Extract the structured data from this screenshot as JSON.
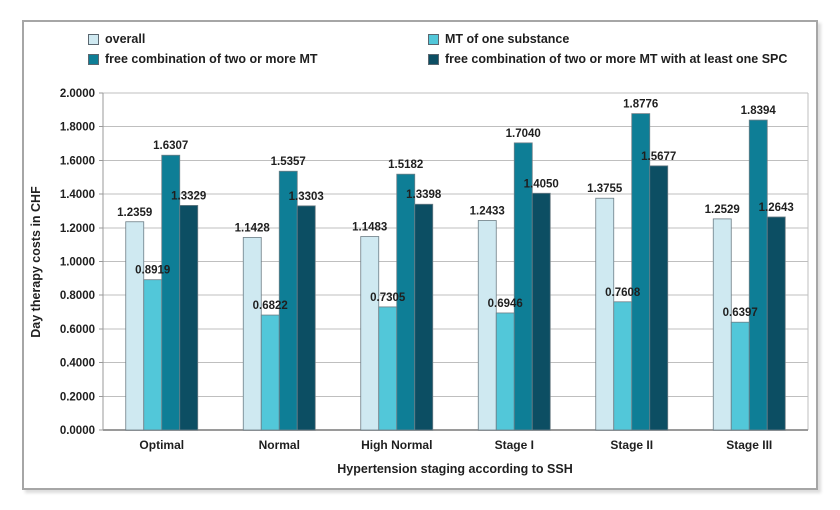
{
  "chart_data": {
    "type": "bar",
    "title": "",
    "xlabel": "Hypertension staging according to SSH",
    "ylabel": "Day therapy costs in CHF",
    "categories": [
      "Optimal",
      "Normal",
      "High Normal",
      "Stage I",
      "Stage II",
      "Stage III"
    ],
    "series": [
      {
        "name": "overall",
        "color": "#cfe9f1",
        "values": [
          1.2359,
          1.1428,
          1.1483,
          1.2433,
          1.3755,
          1.2529
        ]
      },
      {
        "name": "MT of one substance",
        "color": "#52c7d9",
        "values": [
          0.8919,
          0.6822,
          0.7305,
          0.6946,
          0.7608,
          0.6397
        ]
      },
      {
        "name": "free combination of two or more MT",
        "color": "#0e7e96",
        "values": [
          1.6307,
          1.5357,
          1.5182,
          1.704,
          1.8776,
          1.8394
        ]
      },
      {
        "name": "free combination of two or more MT with at least one SPC",
        "color": "#0c4e63",
        "values": [
          1.3329,
          1.3303,
          1.3398,
          1.405,
          1.5677,
          1.2643
        ]
      }
    ],
    "ylim": [
      0,
      2.0
    ],
    "ytick_step": 0.2,
    "ytick_labels": [
      "0.0000",
      "0.2000",
      "0.4000",
      "0.6000",
      "0.8000",
      "1.0000",
      "1.2000",
      "1.4000",
      "1.6000",
      "1.8000",
      "2.0000"
    ],
    "value_label_decimals": 4,
    "grid": true,
    "legend_position": "top"
  },
  "style_colors": {
    "gridline": "#bfbfbf",
    "axis_line": "#9a9a9a",
    "bar_stroke": "#6d7e86",
    "text": "#1f1f1f",
    "frame_border": "#a6a6a6"
  }
}
